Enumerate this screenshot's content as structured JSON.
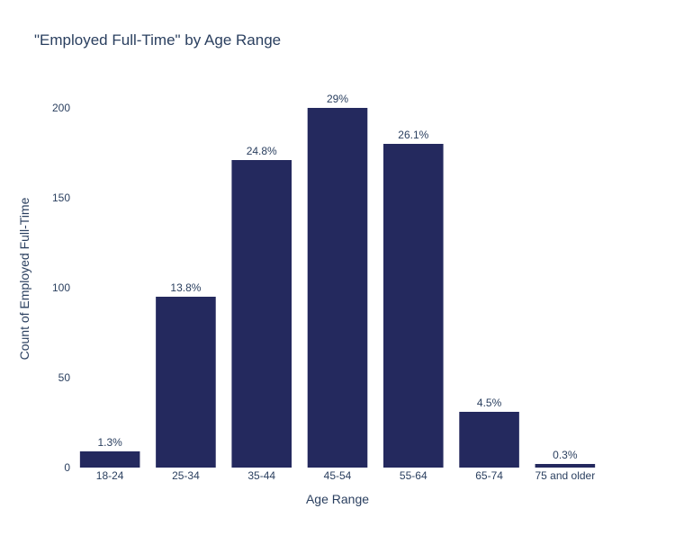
{
  "chart_data": {
    "type": "bar",
    "title": "\"Employed Full-Time\" by Age Range",
    "xlabel": "Age Range",
    "ylabel": "Count of Employed Full-Time",
    "categories": [
      "18-24",
      "25-34",
      "35-44",
      "45-54",
      "55-64",
      "65-74",
      "75 and older"
    ],
    "values": [
      9,
      95,
      171,
      200,
      180,
      31,
      2
    ],
    "labels": [
      "1.3%",
      "13.8%",
      "24.8%",
      "29%",
      "26.1%",
      "4.5%",
      "0.3%"
    ],
    "ylim": [
      0,
      220
    ],
    "yticks": [
      0,
      50,
      100,
      150,
      200
    ],
    "grid": false,
    "legend": "none",
    "bar_color": "#24295e",
    "text_color": "#2a3f5f"
  }
}
